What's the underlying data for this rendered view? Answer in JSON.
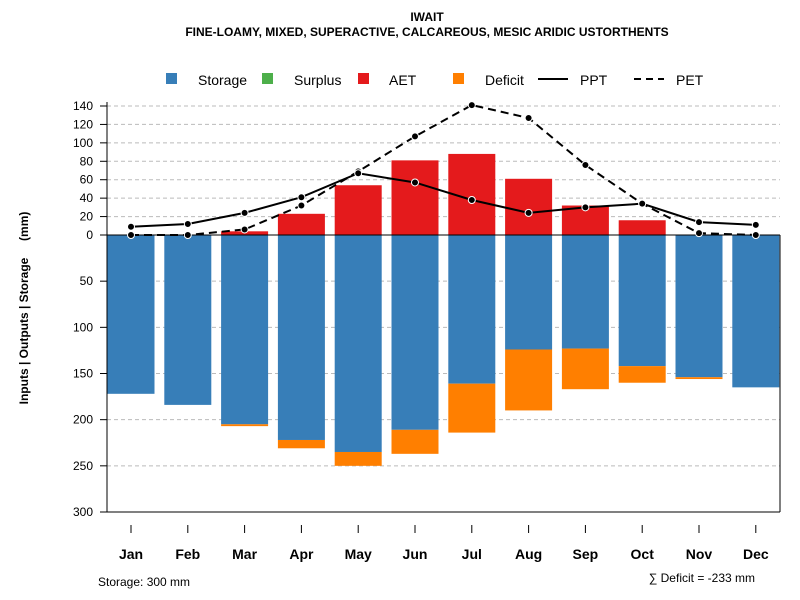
{
  "chart_data": {
    "type": "bar",
    "title": "IWAIT",
    "subtitle": "FINE-LOAMY, MIXED, SUPERACTIVE, CALCAREOUS, MESIC ARIDIC USTORTHENTS",
    "ylabel": "Inputs | Outputs | Storage     (mm)",
    "categories": [
      "Jan",
      "Feb",
      "Mar",
      "Apr",
      "May",
      "Jun",
      "Jul",
      "Aug",
      "Sep",
      "Oct",
      "Nov",
      "Dec"
    ],
    "ylim_top": [
      0,
      140
    ],
    "ylim_bottom": [
      0,
      300
    ],
    "yticks_top": [
      "0",
      "20",
      "40",
      "60",
      "80",
      "100",
      "120",
      "140"
    ],
    "yticks_bottom": [
      "50",
      "100",
      "150",
      "200",
      "250",
      "300"
    ],
    "colors": {
      "storage": "#377eb8",
      "surplus": "#4daf4a",
      "aet": "#e41a1c",
      "deficit": "#ff7f00"
    },
    "legend": {
      "storage": "Storage",
      "surplus": "Surplus",
      "aet": "AET",
      "deficit": "Deficit",
      "ppt": "PPT",
      "pet": "PET"
    },
    "series": {
      "storage": [
        172,
        184,
        205,
        222,
        235,
        211,
        161,
        124,
        123,
        142,
        154,
        165
      ],
      "deficit": [
        0,
        0,
        2,
        9,
        15,
        26,
        53,
        66,
        44,
        18,
        2,
        0
      ],
      "surplus": [
        0,
        0,
        0,
        0,
        0,
        0,
        0,
        0,
        0,
        0,
        0,
        0
      ],
      "aet": [
        0,
        0,
        4,
        23,
        54,
        81,
        88,
        61,
        32,
        16,
        0,
        0
      ],
      "ppt": [
        9,
        12,
        24,
        41,
        67,
        57,
        38,
        24,
        30,
        34,
        14,
        11
      ],
      "pet": [
        0,
        0,
        6,
        32,
        69,
        107,
        141,
        127,
        76,
        34,
        2,
        0
      ]
    },
    "footer_storage": "Storage: 300 mm",
    "footer_deficit": "∑ Deficit = -233 mm"
  }
}
